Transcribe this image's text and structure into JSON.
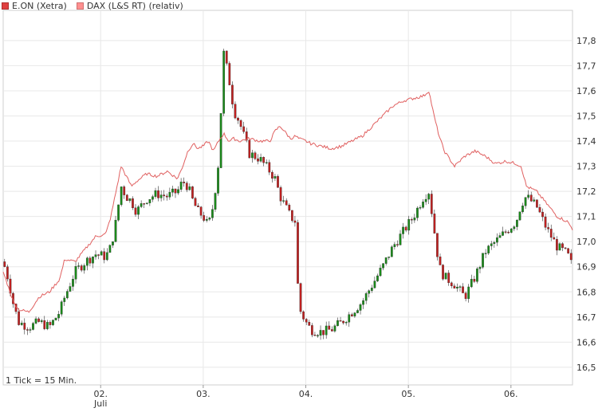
{
  "legend": {
    "series1_label": "E.ON (Xetra)",
    "series2_label": "DAX (L&S RT) (relativ)"
  },
  "footer": {
    "tick_info": "1 Tick = 15 Min."
  },
  "colors": {
    "up_candle": "#1a8a1a",
    "down_candle": "#c02020",
    "dax_line": "#e06060",
    "grid": "#e8e8e8",
    "swatch1": "#e04040",
    "swatch2": "#ff9090"
  },
  "chart_data": {
    "type": "line",
    "subtype": "candlestick-with-line",
    "title": "",
    "xlabel": "",
    "ylabel": "",
    "ylim": [
      16.43,
      17.92
    ],
    "y_ticks": [
      16.5,
      16.6,
      16.7,
      16.8,
      16.9,
      17.0,
      17.1,
      17.2,
      17.3,
      17.4,
      17.5,
      17.6,
      17.7,
      17.8
    ],
    "y_axis_position": "right",
    "x_tick_labels": [
      {
        "label": "02.",
        "sublabel": "Juli"
      },
      {
        "label": "03.",
        "sublabel": ""
      },
      {
        "label": "04.",
        "sublabel": ""
      },
      {
        "label": "05.",
        "sublabel": ""
      },
      {
        "label": "06.",
        "sublabel": ""
      }
    ],
    "x_range_days": [
      0,
      5
    ],
    "x_tick_positions_days": [
      0.95,
      1.95,
      2.95,
      3.95,
      4.95
    ],
    "grid": true,
    "legend_position": "top-left",
    "series": [
      {
        "name": "E.ON (Xetra)",
        "kind": "candlestick",
        "anchors": [
          [
            0.0,
            16.92
          ],
          [
            0.05,
            16.85
          ],
          [
            0.1,
            16.75
          ],
          [
            0.15,
            16.68
          ],
          [
            0.25,
            16.66
          ],
          [
            0.35,
            16.68
          ],
          [
            0.45,
            16.66
          ],
          [
            0.55,
            16.72
          ],
          [
            0.6,
            16.78
          ],
          [
            0.7,
            16.88
          ],
          [
            0.8,
            16.92
          ],
          [
            0.9,
            16.95
          ],
          [
            1.0,
            16.94
          ],
          [
            1.05,
            16.98
          ],
          [
            1.1,
            17.08
          ],
          [
            1.15,
            17.22
          ],
          [
            1.2,
            17.18
          ],
          [
            1.25,
            17.16
          ],
          [
            1.3,
            17.12
          ],
          [
            1.4,
            17.17
          ],
          [
            1.5,
            17.19
          ],
          [
            1.6,
            17.18
          ],
          [
            1.7,
            17.2
          ],
          [
            1.75,
            17.24
          ],
          [
            1.8,
            17.22
          ],
          [
            1.85,
            17.16
          ],
          [
            1.9,
            17.12
          ],
          [
            1.95,
            17.1
          ],
          [
            2.0,
            17.06
          ],
          [
            2.05,
            17.15
          ],
          [
            2.1,
            17.32
          ],
          [
            2.15,
            17.75
          ],
          [
            2.2,
            17.65
          ],
          [
            2.25,
            17.52
          ],
          [
            2.3,
            17.48
          ],
          [
            2.4,
            17.35
          ],
          [
            2.5,
            17.33
          ],
          [
            2.6,
            17.28
          ],
          [
            2.65,
            17.25
          ],
          [
            2.7,
            17.18
          ],
          [
            2.8,
            17.1
          ],
          [
            2.85,
            17.08
          ],
          [
            2.88,
            16.74
          ],
          [
            2.95,
            16.68
          ],
          [
            3.0,
            16.65
          ],
          [
            3.1,
            16.64
          ],
          [
            3.2,
            16.65
          ],
          [
            3.3,
            16.68
          ],
          [
            3.4,
            16.72
          ],
          [
            3.5,
            16.76
          ],
          [
            3.6,
            16.83
          ],
          [
            3.7,
            16.9
          ],
          [
            3.8,
            16.98
          ],
          [
            3.9,
            17.04
          ],
          [
            4.0,
            17.1
          ],
          [
            4.1,
            17.18
          ],
          [
            4.15,
            17.2
          ],
          [
            4.2,
            17.05
          ],
          [
            4.25,
            16.9
          ],
          [
            4.3,
            16.86
          ],
          [
            4.4,
            16.83
          ],
          [
            4.5,
            16.78
          ],
          [
            4.6,
            16.86
          ],
          [
            4.7,
            16.96
          ],
          [
            4.8,
            17.0
          ],
          [
            4.9,
            17.04
          ],
          [
            5.0,
            17.08
          ],
          [
            5.05,
            17.15
          ],
          [
            5.1,
            17.18
          ],
          [
            5.2,
            17.14
          ],
          [
            5.3,
            17.05
          ],
          [
            5.4,
            16.98
          ],
          [
            5.5,
            16.95
          ],
          [
            5.55,
            16.9
          ]
        ]
      },
      {
        "name": "DAX (L&S RT) (relativ)",
        "kind": "line",
        "anchors": [
          [
            0.0,
            16.88
          ],
          [
            0.05,
            16.82
          ],
          [
            0.1,
            16.76
          ],
          [
            0.15,
            16.73
          ],
          [
            0.25,
            16.72
          ],
          [
            0.35,
            16.78
          ],
          [
            0.45,
            16.8
          ],
          [
            0.55,
            16.85
          ],
          [
            0.6,
            16.93
          ],
          [
            0.7,
            16.92
          ],
          [
            0.8,
            16.97
          ],
          [
            0.9,
            17.02
          ],
          [
            1.0,
            17.03
          ],
          [
            1.05,
            17.1
          ],
          [
            1.1,
            17.2
          ],
          [
            1.15,
            17.3
          ],
          [
            1.2,
            17.26
          ],
          [
            1.25,
            17.22
          ],
          [
            1.3,
            17.24
          ],
          [
            1.4,
            17.27
          ],
          [
            1.5,
            17.26
          ],
          [
            1.6,
            17.28
          ],
          [
            1.7,
            17.25
          ],
          [
            1.75,
            17.3
          ],
          [
            1.8,
            17.36
          ],
          [
            1.85,
            17.39
          ],
          [
            1.9,
            17.37
          ],
          [
            1.95,
            17.38
          ],
          [
            2.0,
            17.4
          ],
          [
            2.05,
            17.36
          ],
          [
            2.1,
            17.4
          ],
          [
            2.15,
            17.43
          ],
          [
            2.2,
            17.4
          ],
          [
            2.25,
            17.41
          ],
          [
            2.3,
            17.4
          ],
          [
            2.4,
            17.41
          ],
          [
            2.5,
            17.4
          ],
          [
            2.6,
            17.4
          ],
          [
            2.65,
            17.44
          ],
          [
            2.7,
            17.46
          ],
          [
            2.8,
            17.41
          ],
          [
            2.85,
            17.42
          ],
          [
            2.88,
            17.41
          ],
          [
            2.95,
            17.4
          ],
          [
            3.0,
            17.39
          ],
          [
            3.1,
            17.38
          ],
          [
            3.2,
            17.37
          ],
          [
            3.3,
            17.38
          ],
          [
            3.4,
            17.4
          ],
          [
            3.5,
            17.42
          ],
          [
            3.6,
            17.46
          ],
          [
            3.7,
            17.5
          ],
          [
            3.8,
            17.54
          ],
          [
            3.9,
            17.56
          ],
          [
            4.0,
            17.57
          ],
          [
            4.1,
            17.58
          ],
          [
            4.15,
            17.6
          ],
          [
            4.2,
            17.5
          ],
          [
            4.25,
            17.42
          ],
          [
            4.3,
            17.36
          ],
          [
            4.4,
            17.3
          ],
          [
            4.5,
            17.34
          ],
          [
            4.6,
            17.36
          ],
          [
            4.7,
            17.34
          ],
          [
            4.8,
            17.31
          ],
          [
            4.9,
            17.32
          ],
          [
            5.0,
            17.31
          ],
          [
            5.05,
            17.3
          ],
          [
            5.1,
            17.22
          ],
          [
            5.2,
            17.2
          ],
          [
            5.3,
            17.15
          ],
          [
            5.4,
            17.1
          ],
          [
            5.5,
            17.08
          ],
          [
            5.55,
            17.05
          ]
        ]
      }
    ]
  }
}
